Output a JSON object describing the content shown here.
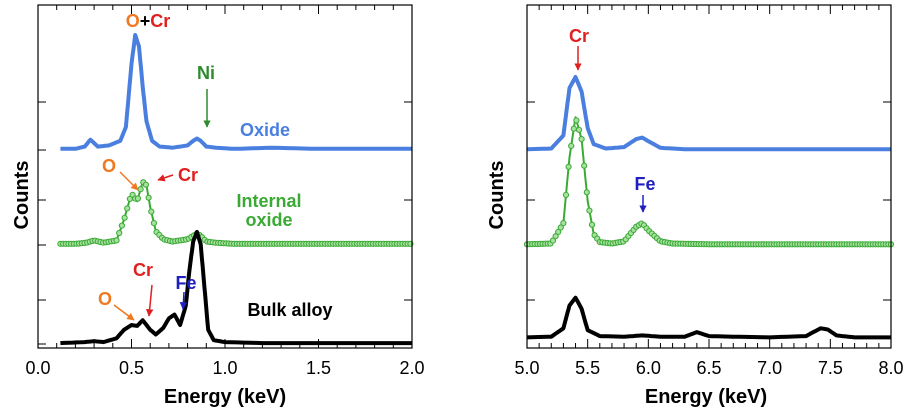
{
  "chart_data": [
    {
      "type": "line",
      "xlabel": "Energy (keV)",
      "ylabel": "Counts",
      "xlim": [
        0.0,
        2.0
      ],
      "xticks": [
        "0.0",
        "0.5",
        "1.0",
        "1.5",
        "2.0"
      ],
      "colors": {
        "Oxide": "#4a7fe0",
        "Internal oxide": "#3aaa35",
        "Bulk alloy": "#000000"
      },
      "series": [
        {
          "name": "Oxide",
          "x": [
            0.12,
            0.2,
            0.25,
            0.28,
            0.32,
            0.38,
            0.44,
            0.47,
            0.5,
            0.52,
            0.54,
            0.56,
            0.58,
            0.61,
            0.65,
            0.72,
            0.8,
            0.83,
            0.85,
            0.87,
            0.9,
            0.95,
            1.05,
            1.25,
            1.5,
            1.75,
            2.0
          ],
          "y": [
            0.01,
            0.01,
            0.03,
            0.09,
            0.03,
            0.04,
            0.08,
            0.2,
            0.75,
            1.0,
            0.9,
            0.55,
            0.25,
            0.08,
            0.03,
            0.02,
            0.04,
            0.08,
            0.1,
            0.08,
            0.03,
            0.02,
            0.01,
            0.02,
            0.01,
            0.01,
            0.01
          ]
        },
        {
          "name": "Internal oxide",
          "x": [
            0.12,
            0.2,
            0.26,
            0.3,
            0.35,
            0.42,
            0.46,
            0.5,
            0.53,
            0.56,
            0.58,
            0.6,
            0.63,
            0.67,
            0.72,
            0.8,
            0.83,
            0.85,
            0.87,
            0.9,
            0.95,
            1.05,
            1.25,
            1.5,
            1.75,
            2.0
          ],
          "y": [
            0.01,
            0.01,
            0.02,
            0.04,
            0.02,
            0.04,
            0.22,
            0.45,
            0.38,
            0.55,
            0.52,
            0.33,
            0.12,
            0.05,
            0.03,
            0.05,
            0.08,
            0.1,
            0.08,
            0.03,
            0.02,
            0.01,
            0.01,
            0.01,
            0.01,
            0.01
          ]
        },
        {
          "name": "Bulk alloy",
          "x": [
            0.12,
            0.25,
            0.3,
            0.35,
            0.42,
            0.46,
            0.5,
            0.53,
            0.56,
            0.6,
            0.63,
            0.67,
            0.7,
            0.73,
            0.76,
            0.79,
            0.81,
            0.83,
            0.85,
            0.87,
            0.89,
            0.91,
            0.94,
            1.0,
            1.2,
            1.5,
            1.75,
            2.0
          ],
          "y": [
            0.01,
            0.02,
            0.03,
            0.02,
            0.06,
            0.15,
            0.2,
            0.19,
            0.25,
            0.15,
            0.1,
            0.17,
            0.27,
            0.31,
            0.2,
            0.4,
            0.78,
            1.08,
            1.18,
            1.05,
            0.6,
            0.15,
            0.04,
            0.02,
            0.01,
            0.01,
            0.01,
            0.01
          ]
        }
      ],
      "annotations": {
        "o_plus_cr": {
          "o": "O",
          "plus": "+",
          "cr": "Cr"
        },
        "ni": "Ni",
        "oxide_label": "Oxide",
        "o_internal": "O",
        "cr_internal": "Cr",
        "internal_oxide_label": [
          "Internal",
          "oxide"
        ],
        "cr_bulk": "Cr",
        "fe_bulk": "Fe",
        "o_bulk": "O",
        "bulk_label": "Bulk alloy"
      }
    },
    {
      "type": "line",
      "xlabel": "Energy (keV)",
      "ylabel": "Counts",
      "xlim": [
        5.0,
        8.0
      ],
      "xticks": [
        "5.0",
        "5.5",
        "6.0",
        "6.5",
        "7.0",
        "7.5",
        "8.0"
      ],
      "colors": {
        "top": "#4a7fe0",
        "middle": "#3aaa35",
        "bottom": "#000000"
      },
      "series": [
        {
          "x": [
            5.0,
            5.2,
            5.3,
            5.35,
            5.4,
            5.45,
            5.5,
            5.55,
            5.65,
            5.8,
            5.9,
            5.95,
            6.0,
            6.1,
            6.3,
            6.5,
            7.0,
            7.5,
            8.0
          ],
          "y": [
            0.01,
            0.02,
            0.2,
            0.85,
            1.0,
            0.8,
            0.3,
            0.08,
            0.02,
            0.04,
            0.15,
            0.17,
            0.12,
            0.03,
            0.01,
            0.01,
            0.01,
            0.01,
            0.01
          ]
        },
        {
          "x": [
            5.0,
            5.2,
            5.3,
            5.35,
            5.4,
            5.45,
            5.5,
            5.55,
            5.6,
            5.7,
            5.8,
            5.9,
            5.95,
            6.0,
            6.1,
            6.2,
            6.5,
            7.0,
            7.5,
            8.0
          ],
          "y": [
            0.01,
            0.02,
            0.3,
            1.2,
            1.75,
            1.45,
            0.6,
            0.15,
            0.04,
            0.02,
            0.05,
            0.25,
            0.3,
            0.2,
            0.05,
            0.02,
            0.01,
            0.01,
            0.01,
            0.01
          ]
        },
        {
          "x": [
            5.0,
            5.2,
            5.3,
            5.35,
            5.4,
            5.45,
            5.5,
            5.6,
            5.8,
            5.95,
            6.1,
            6.3,
            6.4,
            6.5,
            6.7,
            7.0,
            7.3,
            7.42,
            7.48,
            7.55,
            7.7,
            8.0
          ],
          "y": [
            0.01,
            0.02,
            0.15,
            0.5,
            0.62,
            0.45,
            0.12,
            0.03,
            0.02,
            0.04,
            0.02,
            0.02,
            0.09,
            0.03,
            0.02,
            0.01,
            0.03,
            0.15,
            0.13,
            0.04,
            0.01,
            0.01
          ]
        }
      ],
      "annotations": {
        "cr": "Cr",
        "fe": "Fe"
      }
    }
  ]
}
